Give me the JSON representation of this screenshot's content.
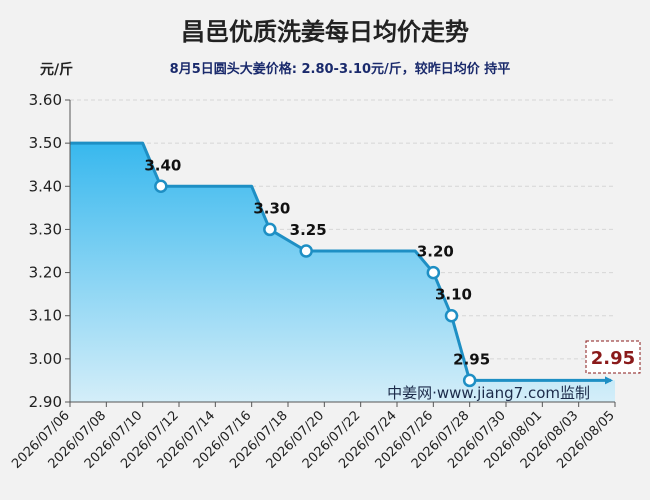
{
  "chart_data": {
    "type": "area",
    "title": "昌邑优质洗姜每日均价走势",
    "subtitle": "8月5日圆头大姜价格: 2.80-3.10元/斤，较昨日均价 持平",
    "ylabel": "元/斤",
    "ylim": [
      2.9,
      3.6
    ],
    "yticks": [
      "2.90",
      "3.00",
      "3.10",
      "3.20",
      "3.30",
      "3.40",
      "3.50",
      "3.60"
    ],
    "xticks": [
      "2026/07/06",
      "2026/07/08",
      "2026/07/10",
      "2026/07/12",
      "2026/07/14",
      "2026/07/16",
      "2026/07/18",
      "2026/07/20",
      "2026/07/22",
      "2026/07/24",
      "2026/07/26",
      "2026/07/28",
      "2026/07/30",
      "2026/08/01",
      "2026/08/03",
      "2026/08/05"
    ],
    "x_start": "2026/07/06",
    "x_end": "2026/08/05",
    "points": [
      {
        "x": "2026/07/06",
        "y": 3.5
      },
      {
        "x": "2026/07/10",
        "y": 3.5
      },
      {
        "x": "2026/07/11",
        "y": 3.4,
        "label": "3.40"
      },
      {
        "x": "2026/07/16",
        "y": 3.4
      },
      {
        "x": "2026/07/17",
        "y": 3.3,
        "label": "3.30"
      },
      {
        "x": "2026/07/19",
        "y": 3.25,
        "label": "3.25"
      },
      {
        "x": "2026/07/25",
        "y": 3.25
      },
      {
        "x": "2026/07/26",
        "y": 3.2,
        "label": "3.20"
      },
      {
        "x": "2026/07/27",
        "y": 3.1,
        "label": "3.10"
      },
      {
        "x": "2026/07/28",
        "y": 2.95,
        "label": "2.95"
      },
      {
        "x": "2026/08/05",
        "y": 2.95
      }
    ],
    "last_value_label": "2.95",
    "watermark": "中姜网·www.jiang7.com监制",
    "line_color": "#1e8fc4",
    "fill_top_color": "#38b8ee",
    "fill_bottom_color": "#d4eef9",
    "grid": true
  }
}
